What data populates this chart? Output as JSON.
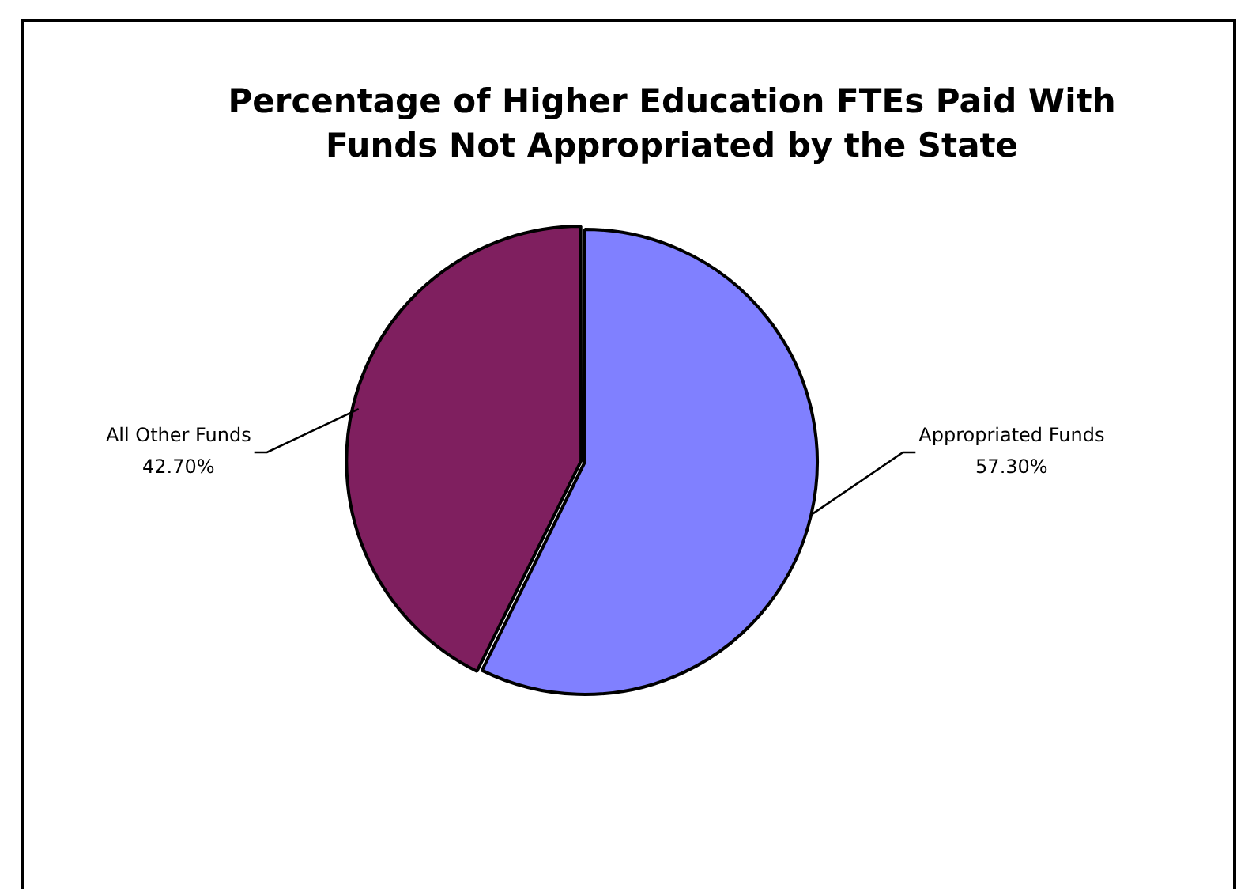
{
  "chart_data": {
    "type": "pie",
    "title": "Percentage of Higher Education FTEs Paid With Funds Not Appropriated by the State",
    "categories": [
      "Appropriated Funds",
      "All Other Funds"
    ],
    "values": [
      57.3,
      42.7
    ],
    "colors": [
      "#8080ff",
      "#7f1f5f"
    ],
    "value_labels": [
      "57.30%",
      "42.70%"
    ],
    "legend": false
  }
}
